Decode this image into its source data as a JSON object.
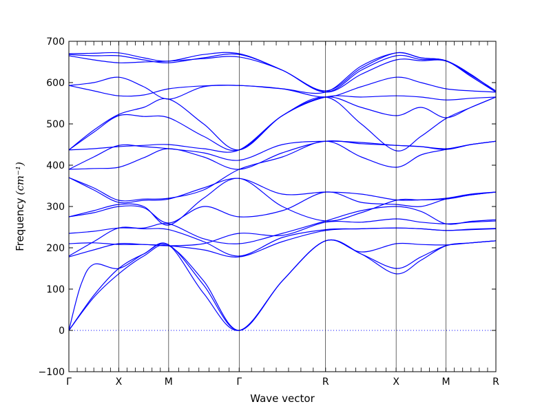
{
  "chart_data": {
    "type": "line",
    "xlabel": "Wave vector",
    "ylabel": "Frequency",
    "ylabel_unit": "(cm⁻¹)",
    "ylim": [
      -100,
      700
    ],
    "y_ticks": [
      -100,
      0,
      100,
      200,
      300,
      400,
      500,
      600,
      700
    ],
    "k_path": {
      "labels": [
        "Γ",
        "X",
        "M",
        "Γ",
        "R",
        "X",
        "M",
        "R"
      ],
      "positions": [
        0,
        0.5,
        1.0,
        1.7071,
        2.5731,
        3.2802,
        3.7802,
        4.2802
      ]
    },
    "zero_line": {
      "y": 0,
      "style": "dotted"
    },
    "grid": false,
    "series_color": "#0000ff",
    "series": [
      {
        "x": [
          0,
          0.25,
          0.5,
          0.75,
          1.0,
          1.35,
          1.7071,
          2.14,
          2.5731,
          2.93,
          3.2802,
          3.53,
          3.7802,
          4.03,
          4.2802
        ],
        "values": [
          0,
          80,
          137,
          180,
          205,
          120,
          0,
          120,
          217,
          185,
          137,
          170,
          205,
          212,
          217
        ]
      },
      {
        "x": [
          0,
          0.25,
          0.5,
          0.75,
          1.0,
          1.35,
          1.7071,
          2.14,
          2.5731,
          2.93,
          3.2802,
          3.53,
          3.7802,
          4.03,
          4.2802
        ],
        "values": [
          0,
          85,
          150,
          185,
          207,
          110,
          0,
          120,
          217,
          185,
          150,
          178,
          205,
          212,
          217
        ]
      },
      {
        "x": [
          0,
          0.12,
          0.25,
          0.5,
          0.75,
          1.0,
          1.35,
          1.7071,
          2.14,
          2.5731,
          2.93,
          3.2802,
          3.53,
          3.7802,
          4.03,
          4.2802
        ],
        "values": [
          0,
          110,
          160,
          150,
          185,
          207,
          90,
          0,
          120,
          217,
          190,
          210,
          208,
          207,
          212,
          217
        ]
      },
      {
        "x": [
          0,
          0.25,
          0.5,
          0.75,
          1.0,
          1.35,
          1.7071,
          2.14,
          2.5731,
          2.93,
          3.2802,
          3.53,
          3.7802,
          4.03,
          4.2802
        ],
        "values": [
          178,
          195,
          210,
          208,
          205,
          195,
          178,
          215,
          242,
          246,
          248,
          246,
          242,
          244,
          246
        ]
      },
      {
        "x": [
          0,
          0.25,
          0.5,
          0.75,
          1.0,
          1.35,
          1.7071,
          2.14,
          2.5731,
          2.93,
          3.2802,
          3.53,
          3.7802,
          4.03,
          4.2802
        ],
        "values": [
          180,
          215,
          248,
          246,
          244,
          215,
          180,
          225,
          244,
          246,
          248,
          246,
          242,
          245,
          247
        ]
      },
      {
        "x": [
          0,
          0.25,
          0.5,
          0.75,
          1.0,
          1.35,
          1.7071,
          2.14,
          2.5731,
          2.93,
          3.2802,
          3.53,
          3.7802,
          4.03,
          4.2802
        ],
        "values": [
          210,
          212,
          208,
          208,
          205,
          210,
          235,
          230,
          262,
          262,
          270,
          262,
          258,
          262,
          265
        ]
      },
      {
        "x": [
          0,
          0.25,
          0.5,
          0.75,
          1.0,
          1.35,
          1.7071,
          2.14,
          2.5731,
          2.93,
          3.2802,
          3.53,
          3.7802,
          4.03,
          4.2802
        ],
        "values": [
          235,
          240,
          248,
          248,
          258,
          222,
          210,
          235,
          265,
          290,
          300,
          288,
          258,
          264,
          268
        ]
      },
      {
        "x": [
          0,
          0.25,
          0.5,
          0.75,
          1.0,
          1.35,
          1.7071,
          2.14,
          2.5731,
          2.93,
          3.2802,
          3.53,
          3.7802,
          4.03,
          4.2802
        ],
        "values": [
          275,
          285,
          300,
          297,
          260,
          300,
          275,
          290,
          335,
          310,
          305,
          300,
          318,
          328,
          335
        ]
      },
      {
        "x": [
          0,
          0.25,
          0.5,
          0.75,
          1.0,
          1.35,
          1.7071,
          2.14,
          2.5731,
          2.93,
          3.2802,
          3.53,
          3.7802,
          4.03,
          4.2802
        ],
        "values": [
          275,
          290,
          305,
          300,
          255,
          320,
          368,
          300,
          265,
          285,
          315,
          316,
          318,
          328,
          335
        ]
      },
      {
        "x": [
          0,
          0.25,
          0.5,
          0.75,
          1.0,
          1.35,
          1.7071,
          2.14,
          2.5731,
          2.93,
          3.2802,
          3.53,
          3.7802,
          4.03,
          4.2802
        ],
        "values": [
          370,
          340,
          310,
          315,
          318,
          345,
          368,
          330,
          335,
          330,
          316,
          316,
          320,
          330,
          335
        ]
      },
      {
        "x": [
          0,
          0.25,
          0.5,
          0.75,
          1.0,
          1.35,
          1.7071,
          2.14,
          2.5731,
          2.93,
          3.2802,
          3.53,
          3.7802,
          4.03,
          4.2802
        ],
        "values": [
          370,
          345,
          315,
          318,
          320,
          340,
          390,
          420,
          458,
          420,
          395,
          425,
          438,
          450,
          458
        ]
      },
      {
        "x": [
          0,
          0.25,
          0.5,
          0.75,
          1.0,
          1.35,
          1.7071,
          2.14,
          2.5731,
          2.93,
          3.2802,
          3.53,
          3.7802,
          4.03,
          4.2802
        ],
        "values": [
          390,
          392,
          395,
          418,
          440,
          420,
          390,
          430,
          458,
          452,
          448,
          445,
          438,
          450,
          458
        ]
      },
      {
        "x": [
          0,
          0.25,
          0.5,
          0.75,
          1.0,
          1.35,
          1.7071,
          2.14,
          2.5731,
          2.93,
          3.2802,
          3.53,
          3.7802,
          4.03,
          4.2802
        ],
        "values": [
          390,
          420,
          448,
          445,
          440,
          430,
          412,
          450,
          458,
          455,
          448,
          445,
          440,
          450,
          458
        ]
      },
      {
        "x": [
          0,
          0.25,
          0.5,
          0.75,
          1.0,
          1.35,
          1.7071,
          2.14,
          2.5731,
          2.93,
          3.2802,
          3.53,
          3.7802,
          4.03,
          4.2802
        ],
        "values": [
          437,
          440,
          445,
          448,
          450,
          440,
          437,
          520,
          565,
          500,
          435,
          470,
          513,
          540,
          565
        ]
      },
      {
        "x": [
          0,
          0.25,
          0.5,
          0.75,
          1.0,
          1.35,
          1.7071,
          2.14,
          2.5731,
          2.93,
          3.2802,
          3.53,
          3.7802,
          4.03,
          4.2802
        ],
        "values": [
          437,
          480,
          520,
          518,
          515,
          470,
          437,
          520,
          565,
          540,
          520,
          540,
          515,
          540,
          565
        ]
      },
      {
        "x": [
          0,
          0.25,
          0.5,
          0.75,
          1.0,
          1.35,
          1.7071,
          2.14,
          2.5731,
          2.93,
          3.2802,
          3.53,
          3.7802,
          4.03,
          4.2802
        ],
        "values": [
          437,
          485,
          523,
          540,
          560,
          500,
          437,
          520,
          565,
          565,
          568,
          565,
          558,
          562,
          565
        ]
      },
      {
        "x": [
          0,
          0.25,
          0.5,
          0.75,
          1.0,
          1.35,
          1.7071,
          2.14,
          2.5731,
          2.93,
          3.2802,
          3.53,
          3.7802,
          4.03,
          4.2802
        ],
        "values": [
          593,
          580,
          568,
          570,
          585,
          592,
          593,
          585,
          565,
          590,
          613,
          600,
          585,
          580,
          577
        ]
      },
      {
        "x": [
          0,
          0.25,
          0.5,
          0.75,
          1.0,
          1.35,
          1.7071,
          2.14,
          2.5731,
          2.93,
          3.2802,
          3.53,
          3.7802,
          4.03,
          4.2802
        ],
        "values": [
          593,
          600,
          613,
          590,
          560,
          590,
          593,
          585,
          577,
          640,
          672,
          660,
          653,
          620,
          577
        ]
      },
      {
        "x": [
          0,
          0.25,
          0.5,
          0.75,
          1.0,
          1.35,
          1.7071,
          2.14,
          2.5731,
          2.93,
          3.2802,
          3.53,
          3.7802,
          4.03,
          4.2802
        ],
        "values": [
          665,
          655,
          648,
          650,
          652,
          658,
          662,
          630,
          577,
          620,
          655,
          653,
          652,
          615,
          577
        ]
      },
      {
        "x": [
          0,
          0.25,
          0.5,
          0.75,
          1.0,
          1.35,
          1.7071,
          2.14,
          2.5731,
          2.93,
          3.2802,
          3.53,
          3.7802,
          4.03,
          4.2802
        ],
        "values": [
          668,
          665,
          665,
          655,
          648,
          660,
          668,
          630,
          577,
          630,
          665,
          656,
          653,
          615,
          577
        ]
      },
      {
        "x": [
          0,
          0.25,
          0.5,
          0.75,
          1.0,
          1.35,
          1.7071,
          2.14,
          2.5731,
          2.93,
          3.2802,
          3.53,
          3.7802,
          4.03,
          4.2802
        ],
        "values": [
          670,
          671,
          672,
          660,
          652,
          668,
          670,
          630,
          580,
          635,
          672,
          660,
          653,
          618,
          580
        ]
      }
    ]
  }
}
